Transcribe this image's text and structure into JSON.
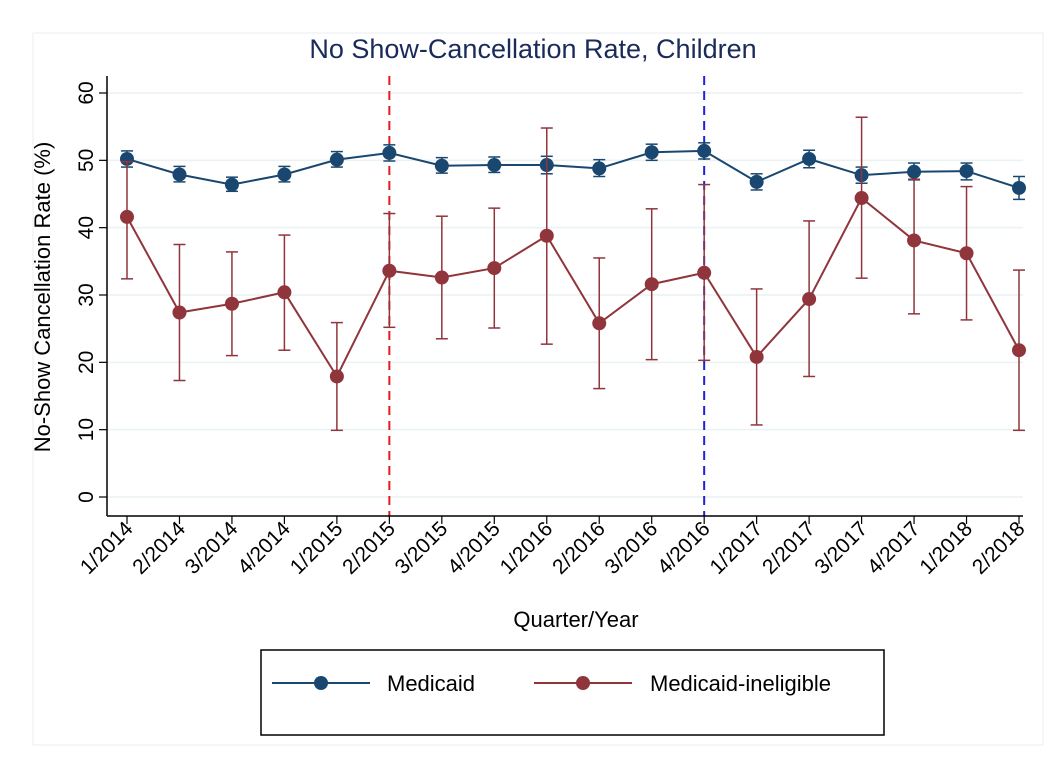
{
  "chart_data": {
    "type": "line",
    "title": "No Show-Cancellation Rate, Children",
    "xlabel": "Quarter/Year",
    "ylabel": "No-Show Cancellation Rate (%)",
    "ylim": [
      0,
      60
    ],
    "yticks": [
      0,
      10,
      20,
      30,
      40,
      50,
      60
    ],
    "grid": "horizontal",
    "categories": [
      "1/2014",
      "2/2014",
      "3/2014",
      "4/2014",
      "1/2015",
      "2/2015",
      "3/2015",
      "4/2015",
      "1/2016",
      "2/2016",
      "3/2016",
      "4/2016",
      "1/2017",
      "2/2017",
      "3/2017",
      "4/2017",
      "1/2018",
      "2/2018"
    ],
    "series": [
      {
        "name": "Medicaid",
        "color": "#1a476f",
        "values": [
          50.2,
          47.9,
          46.4,
          47.9,
          50.1,
          51.1,
          49.2,
          49.3,
          49.3,
          48.8,
          51.2,
          51.4,
          46.8,
          50.2,
          47.8,
          48.3,
          48.4,
          45.9
        ],
        "ci_low": [
          49.0,
          46.8,
          45.4,
          46.8,
          49.0,
          49.9,
          48.1,
          48.2,
          48.0,
          47.6,
          50.0,
          50.2,
          45.6,
          48.9,
          46.6,
          47.1,
          47.1,
          44.2
        ],
        "ci_high": [
          51.4,
          49.1,
          47.5,
          49.1,
          51.3,
          52.3,
          50.4,
          50.5,
          50.6,
          50.1,
          52.4,
          52.6,
          48.0,
          51.5,
          49.0,
          49.6,
          49.6,
          47.6
        ]
      },
      {
        "name": "Medicaid-ineligible",
        "color": "#90353b",
        "values": [
          41.6,
          27.4,
          28.7,
          30.4,
          17.9,
          33.6,
          32.6,
          34.0,
          38.8,
          25.8,
          31.6,
          33.3,
          20.8,
          29.4,
          44.4,
          38.1,
          36.2,
          21.8
        ],
        "ci_low": [
          32.4,
          17.3,
          21.0,
          21.8,
          9.9,
          25.2,
          23.5,
          25.1,
          22.7,
          16.1,
          20.4,
          20.3,
          10.7,
          17.9,
          32.5,
          27.2,
          26.3,
          9.9
        ],
        "ci_high": [
          49.8,
          37.5,
          36.4,
          38.9,
          25.9,
          42.1,
          41.7,
          42.9,
          54.8,
          35.5,
          42.8,
          46.4,
          30.9,
          41.0,
          56.4,
          47.2,
          46.1,
          33.7
        ]
      }
    ],
    "reference_lines": [
      {
        "x": "2/2015",
        "color": "#e41a1c",
        "style": "dashed"
      },
      {
        "x": "4/2016",
        "color": "#1f1fe0",
        "style": "dashed"
      }
    ],
    "legend_position": "bottom"
  }
}
